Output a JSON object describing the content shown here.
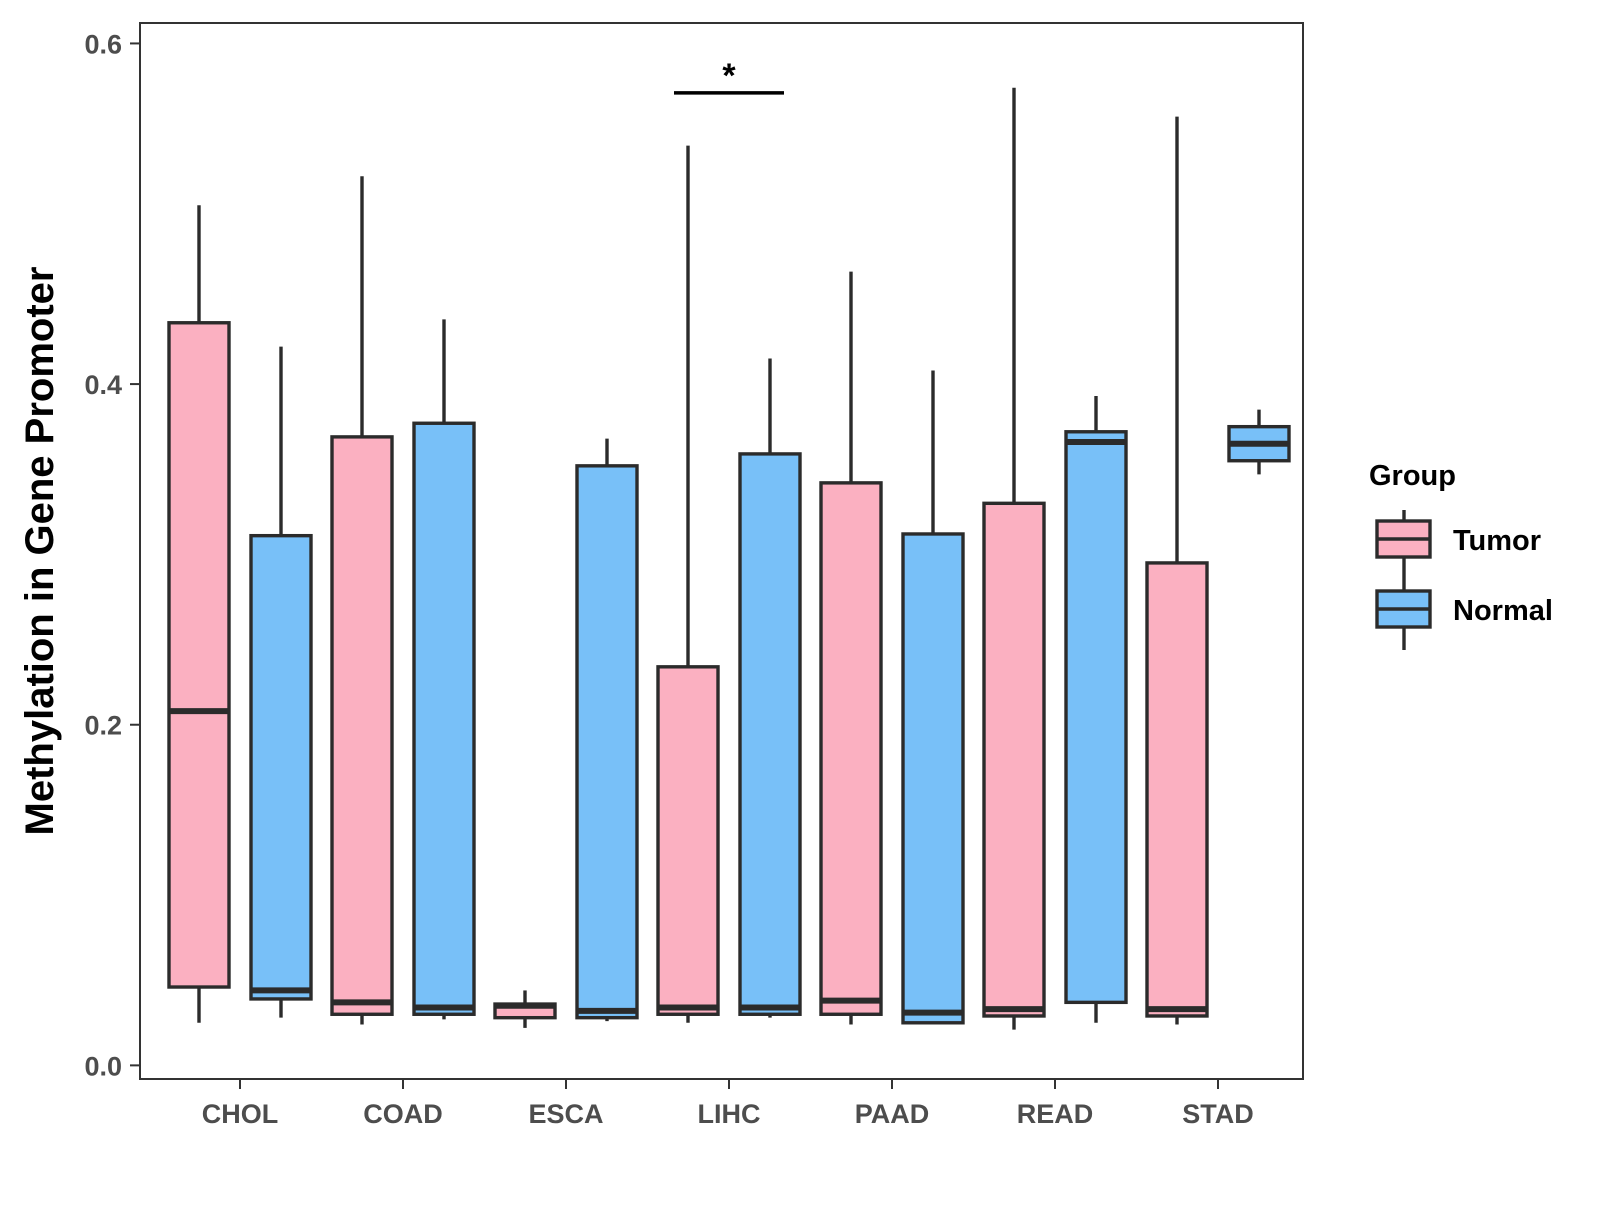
{
  "chart_data": {
    "type": "boxplot",
    "title": "",
    "xlabel": "",
    "ylabel": "Methylation in Gene Promoter",
    "ylim": [
      -0.008,
      0.612
    ],
    "y_ticks": [
      0.0,
      0.2,
      0.4,
      0.6
    ],
    "y_tick_labels": [
      "0.0",
      "0.2",
      "0.4",
      "0.6"
    ],
    "grid": false,
    "categories": [
      "CHOL",
      "COAD",
      "ESCA",
      "LIHC",
      "PAAD",
      "READ",
      "STAD"
    ],
    "legend": {
      "title": "Group",
      "placement": "right",
      "entries": [
        "Tumor",
        "Normal"
      ]
    },
    "colors": {
      "Tumor": "#FBB0C1",
      "Normal": "#78C0F8",
      "outline": "#2b2b2b"
    },
    "series": [
      {
        "name": "Tumor",
        "boxes": [
          {
            "category": "CHOL",
            "min": 0.025,
            "q1": 0.046,
            "median": 0.208,
            "q3": 0.436,
            "max": 0.505
          },
          {
            "category": "COAD",
            "min": 0.024,
            "q1": 0.03,
            "median": 0.037,
            "q3": 0.369,
            "max": 0.522
          },
          {
            "category": "ESCA",
            "min": 0.022,
            "q1": 0.028,
            "median": 0.035,
            "q3": 0.036,
            "max": 0.044
          },
          {
            "category": "LIHC",
            "min": 0.025,
            "q1": 0.03,
            "median": 0.034,
            "q3": 0.234,
            "max": 0.54
          },
          {
            "category": "PAAD",
            "min": 0.024,
            "q1": 0.03,
            "median": 0.038,
            "q3": 0.342,
            "max": 0.466
          },
          {
            "category": "READ",
            "min": 0.021,
            "q1": 0.029,
            "median": 0.033,
            "q3": 0.33,
            "max": 0.574
          },
          {
            "category": "STAD",
            "min": 0.024,
            "q1": 0.029,
            "median": 0.033,
            "q3": 0.295,
            "max": 0.557
          }
        ]
      },
      {
        "name": "Normal",
        "boxes": [
          {
            "category": "CHOL",
            "min": 0.028,
            "q1": 0.039,
            "median": 0.044,
            "q3": 0.311,
            "max": 0.422
          },
          {
            "category": "COAD",
            "min": 0.027,
            "q1": 0.03,
            "median": 0.034,
            "q3": 0.377,
            "max": 0.438
          },
          {
            "category": "ESCA",
            "min": 0.026,
            "q1": 0.028,
            "median": 0.032,
            "q3": 0.352,
            "max": 0.368
          },
          {
            "category": "LIHC",
            "min": 0.028,
            "q1": 0.03,
            "median": 0.034,
            "q3": 0.359,
            "max": 0.415
          },
          {
            "category": "PAAD",
            "min": 0.025,
            "q1": 0.025,
            "median": 0.031,
            "q3": 0.312,
            "max": 0.408
          },
          {
            "category": "READ",
            "min": 0.025,
            "q1": 0.037,
            "median": 0.366,
            "q3": 0.372,
            "max": 0.393
          },
          {
            "category": "STAD",
            "min": 0.347,
            "q1": 0.355,
            "median": 0.365,
            "q3": 0.375,
            "max": 0.385
          }
        ]
      }
    ],
    "annotations": [
      {
        "category": "LIHC",
        "label": "*",
        "y": 0.571,
        "between": [
          "Tumor",
          "Normal"
        ]
      }
    ]
  }
}
